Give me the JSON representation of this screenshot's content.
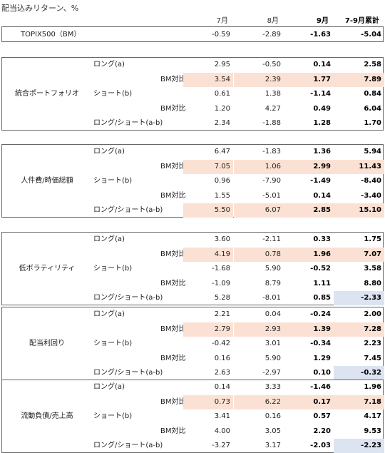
{
  "caption": "配当込みリターン、%",
  "columns": [
    "7月",
    "8月",
    "9月",
    "7-9月累計"
  ],
  "topix": {
    "label": "TOPIX500（BM）",
    "values": [
      "-0.59",
      "-2.89",
      "-1.63",
      "-5.04"
    ]
  },
  "groups": [
    {
      "name": "統合ポートフォリオ",
      "rows": [
        {
          "label": "ロング(a)",
          "values": [
            "2.95",
            "-0.50",
            "0.14",
            "2.58"
          ],
          "hl": [
            false,
            false,
            false,
            false
          ]
        },
        {
          "label": "BM対比",
          "values": [
            "3.54",
            "2.39",
            "1.77",
            "7.89"
          ],
          "hl": [
            "o",
            "o",
            "o",
            "o"
          ]
        },
        {
          "label": "ショート(b)",
          "values": [
            "0.61",
            "1.38",
            "-1.14",
            "0.84"
          ],
          "hl": [
            false,
            false,
            false,
            false
          ]
        },
        {
          "label": "BM対比",
          "values": [
            "1.20",
            "4.27",
            "0.49",
            "6.04"
          ],
          "hl": [
            false,
            false,
            false,
            false
          ]
        },
        {
          "label": "ロング/ショート(a-b)",
          "values": [
            "2.34",
            "-1.88",
            "1.28",
            "1.70"
          ],
          "hl": [
            false,
            false,
            false,
            false
          ]
        }
      ]
    },
    {
      "name": "人件費/時価総額",
      "rows": [
        {
          "label": "ロング(a)",
          "values": [
            "6.47",
            "-1.83",
            "1.36",
            "5.94"
          ],
          "hl": [
            false,
            false,
            false,
            false
          ]
        },
        {
          "label": "BM対比",
          "values": [
            "7.05",
            "1.06",
            "2.99",
            "11.43"
          ],
          "hl": [
            "o",
            "o",
            "o",
            "o"
          ]
        },
        {
          "label": "ショート(b)",
          "values": [
            "0.96",
            "-7.90",
            "-1.49",
            "-8.40"
          ],
          "hl": [
            false,
            false,
            false,
            false
          ]
        },
        {
          "label": "BM対比",
          "values": [
            "1.55",
            "-5.01",
            "0.14",
            "-3.40"
          ],
          "hl": [
            false,
            false,
            false,
            false
          ]
        },
        {
          "label": "ロング/ショート(a-b)",
          "values": [
            "5.50",
            "6.07",
            "2.85",
            "15.10"
          ],
          "hl": [
            "o",
            "o",
            "o",
            "o"
          ]
        }
      ]
    },
    {
      "name": "低ボラティリティ",
      "rows": [
        {
          "label": "ロング(a)",
          "values": [
            "3.60",
            "-2.11",
            "0.33",
            "1.75"
          ],
          "hl": [
            false,
            false,
            false,
            false
          ]
        },
        {
          "label": "BM対比",
          "values": [
            "4.19",
            "0.78",
            "1.96",
            "7.07"
          ],
          "hl": [
            "o",
            "o",
            "o",
            "o"
          ]
        },
        {
          "label": "ショート(b)",
          "values": [
            "-1.68",
            "5.90",
            "-0.52",
            "3.58"
          ],
          "hl": [
            false,
            false,
            false,
            false
          ]
        },
        {
          "label": "BM対比",
          "values": [
            "-1.09",
            "8.79",
            "1.11",
            "8.80"
          ],
          "hl": [
            false,
            false,
            false,
            false
          ]
        },
        {
          "label": "ロング/ショート(a-b)",
          "values": [
            "5.28",
            "-8.01",
            "0.85",
            "-2.33"
          ],
          "hl": [
            false,
            false,
            false,
            "b"
          ]
        }
      ]
    },
    {
      "name": "配当利回り",
      "rows": [
        {
          "label": "ロング(a)",
          "values": [
            "2.21",
            "0.04",
            "-0.24",
            "2.00"
          ],
          "hl": [
            false,
            false,
            false,
            false
          ]
        },
        {
          "label": "BM対比",
          "values": [
            "2.79",
            "2.93",
            "1.39",
            "7.28"
          ],
          "hl": [
            "o",
            "o",
            "o",
            "o"
          ]
        },
        {
          "label": "ショート(b)",
          "values": [
            "-0.42",
            "3.01",
            "-0.34",
            "2.23"
          ],
          "hl": [
            false,
            false,
            false,
            false
          ]
        },
        {
          "label": "BM対比",
          "values": [
            "0.16",
            "5.90",
            "1.29",
            "7.45"
          ],
          "hl": [
            false,
            false,
            false,
            false
          ]
        },
        {
          "label": "ロング/ショート(a-b)",
          "values": [
            "2.63",
            "-2.97",
            "0.10",
            "-0.32"
          ],
          "hl": [
            false,
            false,
            false,
            "b"
          ]
        }
      ]
    },
    {
      "name": "流動負債/売上高",
      "rows": [
        {
          "label": "ロング(a)",
          "values": [
            "0.14",
            "3.33",
            "-1.46",
            "1.96"
          ],
          "hl": [
            false,
            false,
            false,
            false
          ]
        },
        {
          "label": "BM対比",
          "values": [
            "0.73",
            "6.22",
            "0.17",
            "7.18"
          ],
          "hl": [
            "o",
            "o",
            "o",
            "o"
          ]
        },
        {
          "label": "ショート(b)",
          "values": [
            "3.41",
            "0.16",
            "0.57",
            "4.17"
          ],
          "hl": [
            false,
            false,
            false,
            false
          ]
        },
        {
          "label": "BM対比",
          "values": [
            "4.00",
            "3.05",
            "2.20",
            "9.53"
          ],
          "hl": [
            false,
            false,
            false,
            false
          ]
        },
        {
          "label": "ロング/ショート(a-b)",
          "values": [
            "-3.27",
            "3.17",
            "-2.03",
            "-2.23"
          ],
          "hl": [
            false,
            false,
            false,
            "b"
          ]
        }
      ]
    }
  ]
}
